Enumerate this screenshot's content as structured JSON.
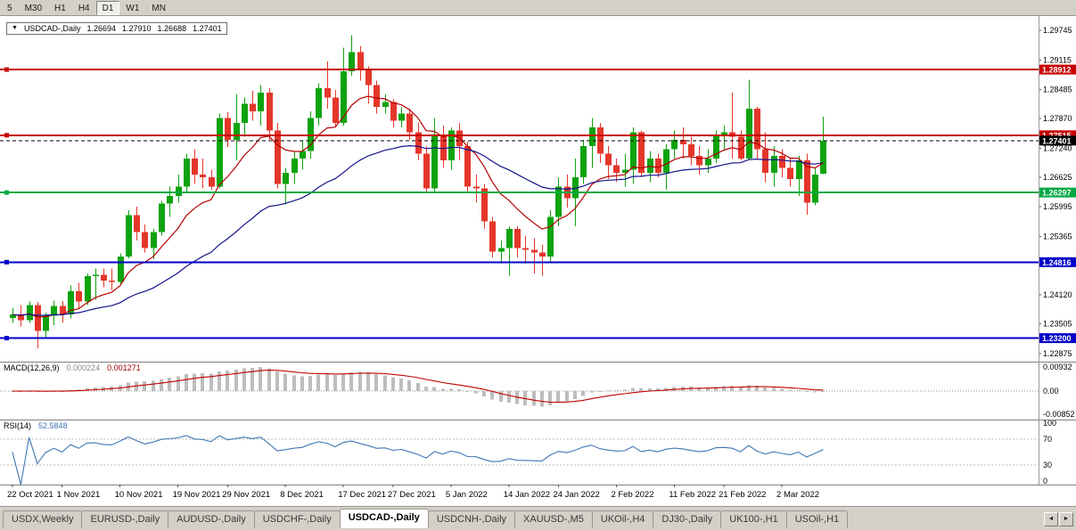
{
  "window": {
    "bg": "#D4D0C8",
    "chart_bg": "#FFFFFF"
  },
  "toolbar": {
    "timeframes": [
      "5",
      "M30",
      "H1",
      "H4",
      "D1",
      "W1",
      "MN"
    ],
    "active": "D1"
  },
  "chart_header": {
    "collapse_arrow_icon": "▼",
    "symbol": "USDCAD-,Daily",
    "open": "1.26694",
    "high": "1.27910",
    "low": "1.26688",
    "close": "1.27401"
  },
  "indicators": {
    "macd": {
      "label": "MACD(12,26,9)",
      "value_main": "0.000224",
      "value_signal": "0.001271",
      "axis": {
        "top": "0.00932",
        "zero": "0.00",
        "bottom": "-0.00852"
      }
    },
    "rsi": {
      "label": "RSI(14)",
      "value": "52.5848",
      "axis": [
        {
          "v": 100,
          "label": "100"
        },
        {
          "v": 70,
          "label": "70"
        },
        {
          "v": 30,
          "label": "30"
        },
        {
          "v": 0,
          "label": "0"
        }
      ],
      "levels": [
        70,
        30
      ]
    }
  },
  "tabbar": {
    "tabs": [
      "USDX,Weekly",
      "EURUSD-,Daily",
      "AUDUSD-,Daily",
      "USDCHF-,Daily",
      "USDCAD-,Daily",
      "USDCNH-,Daily",
      "XAUUSD-,M5",
      "UKOil-,H4",
      "DJ30-,Daily",
      "UK100-,H1",
      "USOil-,H1"
    ],
    "active_index": 4,
    "scroll_left_icon": "◄",
    "scroll_right_icon": "►"
  },
  "chart_data": {
    "type": "candlestick",
    "symbol": "USDCAD",
    "timeframe": "Daily",
    "price_axis": {
      "min": 1.227,
      "max": 1.3005,
      "tick_labels": [
        "1.29745",
        "1.29115",
        "1.28485",
        "1.27870",
        "1.27240",
        "1.26625",
        "1.25995",
        "1.25365",
        "1.24120",
        "1.23505",
        "1.22875"
      ]
    },
    "hlines": [
      {
        "value": 1.28912,
        "label": "1.28912",
        "color": "#C80000",
        "style": "solid",
        "is_current_price": false
      },
      {
        "value": 1.27515,
        "label": "1.27515",
        "color": "#C80000",
        "style": "solid",
        "is_current_price": false
      },
      {
        "value": 1.27401,
        "label": "1.27401",
        "color": "#000000",
        "style": "dashed",
        "is_current_price": true
      },
      {
        "value": 1.26297,
        "label": "1.26297",
        "color": "#00A843",
        "style": "solid",
        "is_current_price": false
      },
      {
        "value": 1.24816,
        "label": "1.24816",
        "color": "#0000C8",
        "style": "solid",
        "is_current_price": false
      },
      {
        "value": 1.232,
        "label": "1.23200",
        "color": "#0000C8",
        "style": "solid",
        "is_current_price": false
      }
    ],
    "x_labels": [
      {
        "i": 0,
        "label": "22 Oct 2021"
      },
      {
        "i": 6,
        "label": "1 Nov 2021"
      },
      {
        "i": 13,
        "label": "10 Nov 2021"
      },
      {
        "i": 20,
        "label": "19 Nov 2021"
      },
      {
        "i": 26,
        "label": "29 Nov 2021"
      },
      {
        "i": 33,
        "label": "8 Dec 2021"
      },
      {
        "i": 40,
        "label": "17 Dec 2021"
      },
      {
        "i": 46,
        "label": "27 Dec 2021"
      },
      {
        "i": 53,
        "label": "5 Jan 2022"
      },
      {
        "i": 60,
        "label": "14 Jan 2022"
      },
      {
        "i": 66,
        "label": "24 Jan 2022"
      },
      {
        "i": 73,
        "label": "2 Feb 2022"
      },
      {
        "i": 80,
        "label": "11 Feb 2022"
      },
      {
        "i": 86,
        "label": "21 Feb 2022"
      },
      {
        "i": 93,
        "label": "2 Mar 2022"
      }
    ],
    "up_color": "#0FA30F",
    "down_color": "#E5362A",
    "moving_averages": [
      {
        "period": 10,
        "color": "#B40000"
      },
      {
        "period": 34,
        "color": "#14148C"
      }
    ],
    "macd": {
      "fast": 12,
      "slow": 26,
      "signal": 9,
      "hist_color": "#BDBDBD",
      "signal_color": "#C00000"
    },
    "rsi": {
      "period": 14,
      "color": "#4076B4"
    },
    "candles": [
      [
        1.2363,
        1.2385,
        1.2352,
        1.237
      ],
      [
        1.237,
        1.239,
        1.2345,
        1.2358
      ],
      [
        1.2358,
        1.2398,
        1.2352,
        1.239
      ],
      [
        1.239,
        1.2397,
        1.2298,
        1.2335
      ],
      [
        1.2335,
        1.2374,
        1.232,
        1.2368
      ],
      [
        1.2368,
        1.24,
        1.2348,
        1.2388
      ],
      [
        1.2388,
        1.2399,
        1.2353,
        1.237
      ],
      [
        1.237,
        1.2432,
        1.2362,
        1.242
      ],
      [
        1.242,
        1.2438,
        1.2383,
        1.2398
      ],
      [
        1.2398,
        1.2458,
        1.239,
        1.2452
      ],
      [
        1.2452,
        1.2468,
        1.2402,
        1.2455
      ],
      [
        1.2455,
        1.2468,
        1.2428,
        1.2442
      ],
      [
        1.2442,
        1.2468,
        1.2422,
        1.244
      ],
      [
        1.244,
        1.25,
        1.2432,
        1.2494
      ],
      [
        1.2494,
        1.2592,
        1.249,
        1.2582
      ],
      [
        1.2582,
        1.26,
        1.2528,
        1.2546
      ],
      [
        1.2546,
        1.2562,
        1.2502,
        1.2512
      ],
      [
        1.2512,
        1.2552,
        1.2488,
        1.2546
      ],
      [
        1.2546,
        1.2612,
        1.2538,
        1.2606
      ],
      [
        1.2606,
        1.2642,
        1.2578,
        1.2622
      ],
      [
        1.2622,
        1.2668,
        1.2608,
        1.2642
      ],
      [
        1.2642,
        1.2712,
        1.2632,
        1.2702
      ],
      [
        1.2702,
        1.2722,
        1.2648,
        1.2668
      ],
      [
        1.2668,
        1.2702,
        1.2638,
        1.2662
      ],
      [
        1.2662,
        1.2678,
        1.2636,
        1.2642
      ],
      [
        1.2642,
        1.2798,
        1.2638,
        1.2788
      ],
      [
        1.2788,
        1.28,
        1.2727,
        1.2742
      ],
      [
        1.2742,
        1.2838,
        1.2698,
        1.2778
      ],
      [
        1.2778,
        1.2832,
        1.2748,
        1.2818
      ],
      [
        1.2818,
        1.2846,
        1.2782,
        1.2802
      ],
      [
        1.2802,
        1.2858,
        1.2772,
        1.2842
      ],
      [
        1.2842,
        1.2852,
        1.2742,
        1.2762
      ],
      [
        1.2762,
        1.2778,
        1.2638,
        1.2648
      ],
      [
        1.2648,
        1.2682,
        1.2604,
        1.2672
      ],
      [
        1.2672,
        1.2718,
        1.2648,
        1.2702
      ],
      [
        1.2702,
        1.2742,
        1.2678,
        1.2718
      ],
      [
        1.2718,
        1.2802,
        1.2702,
        1.2788
      ],
      [
        1.2788,
        1.2862,
        1.2772,
        1.2852
      ],
      [
        1.2852,
        1.2908,
        1.2808,
        1.2832
      ],
      [
        1.2832,
        1.2848,
        1.2768,
        1.2778
      ],
      [
        1.2778,
        1.2938,
        1.2772,
        1.2888
      ],
      [
        1.2888,
        1.2964,
        1.2878,
        1.2928
      ],
      [
        1.2928,
        1.2942,
        1.2868,
        1.2892
      ],
      [
        1.2892,
        1.2898,
        1.2818,
        1.2858
      ],
      [
        1.2858,
        1.2868,
        1.2798,
        1.2812
      ],
      [
        1.2812,
        1.2838,
        1.2798,
        1.2822
      ],
      [
        1.2822,
        1.2828,
        1.2768,
        1.2782
      ],
      [
        1.2782,
        1.2812,
        1.2768,
        1.2798
      ],
      [
        1.2798,
        1.2808,
        1.2742,
        1.2758
      ],
      [
        1.2758,
        1.2778,
        1.2698,
        1.2712
      ],
      [
        1.2712,
        1.2728,
        1.2628,
        1.2638
      ],
      [
        1.2638,
        1.2788,
        1.2632,
        1.2752
      ],
      [
        1.2752,
        1.2772,
        1.2682,
        1.2698
      ],
      [
        1.2698,
        1.2768,
        1.2678,
        1.2762
      ],
      [
        1.2762,
        1.2778,
        1.2698,
        1.2728
      ],
      [
        1.2728,
        1.2738,
        1.2628,
        1.2642
      ],
      [
        1.2642,
        1.2668,
        1.2608,
        1.2638
      ],
      [
        1.2638,
        1.2648,
        1.2552,
        1.2568
      ],
      [
        1.2568,
        1.2578,
        1.2492,
        1.2504
      ],
      [
        1.2504,
        1.2528,
        1.2478,
        1.2512
      ],
      [
        1.2512,
        1.2558,
        1.2452,
        1.2552
      ],
      [
        1.2552,
        1.2558,
        1.2492,
        1.2512
      ],
      [
        1.2512,
        1.2538,
        1.2478,
        1.2508
      ],
      [
        1.2508,
        1.2532,
        1.2458,
        1.2502
      ],
      [
        1.2502,
        1.2518,
        1.2452,
        1.2494
      ],
      [
        1.2494,
        1.2592,
        1.2482,
        1.2578
      ],
      [
        1.2578,
        1.2662,
        1.2558,
        1.2642
      ],
      [
        1.2642,
        1.2668,
        1.2598,
        1.2618
      ],
      [
        1.2618,
        1.2702,
        1.2558,
        1.2662
      ],
      [
        1.2662,
        1.2742,
        1.2648,
        1.2728
      ],
      [
        1.2728,
        1.2788,
        1.2682,
        1.2768
      ],
      [
        1.2768,
        1.2778,
        1.2692,
        1.2712
      ],
      [
        1.2712,
        1.2728,
        1.2658,
        1.2688
      ],
      [
        1.2688,
        1.2702,
        1.2652,
        1.2672
      ],
      [
        1.2672,
        1.2712,
        1.2642,
        1.2678
      ],
      [
        1.2678,
        1.2768,
        1.2648,
        1.2758
      ],
      [
        1.2758,
        1.2762,
        1.2662,
        1.2672
      ],
      [
        1.2672,
        1.2718,
        1.2652,
        1.2702
      ],
      [
        1.2702,
        1.2712,
        1.2662,
        1.2672
      ],
      [
        1.2672,
        1.2732,
        1.2636,
        1.2722
      ],
      [
        1.2722,
        1.2762,
        1.2702,
        1.2742
      ],
      [
        1.2742,
        1.2768,
        1.2702,
        1.2732
      ],
      [
        1.2732,
        1.2748,
        1.2688,
        1.2708
      ],
      [
        1.2708,
        1.2728,
        1.2668,
        1.2688
      ],
      [
        1.2688,
        1.2722,
        1.2672,
        1.2702
      ],
      [
        1.2702,
        1.2762,
        1.2692,
        1.2752
      ],
      [
        1.2752,
        1.2772,
        1.2722,
        1.2758
      ],
      [
        1.2758,
        1.2842,
        1.2702,
        1.2748
      ],
      [
        1.2748,
        1.2762,
        1.2698,
        1.2702
      ],
      [
        1.2702,
        1.287,
        1.2698,
        1.2808
      ],
      [
        1.2808,
        1.2812,
        1.2702,
        1.2722
      ],
      [
        1.2722,
        1.2758,
        1.2652,
        1.2672
      ],
      [
        1.2672,
        1.2728,
        1.2642,
        1.2708
      ],
      [
        1.2708,
        1.2722,
        1.2662,
        1.2682
      ],
      [
        1.2682,
        1.2702,
        1.2642,
        1.2658
      ],
      [
        1.2658,
        1.2708,
        1.2622,
        1.2698
      ],
      [
        1.2698,
        1.2712,
        1.2583,
        1.2608
      ],
      [
        1.2608,
        1.2682,
        1.2602,
        1.2668
      ],
      [
        1.26694,
        1.2791,
        1.26688,
        1.27401
      ]
    ]
  }
}
